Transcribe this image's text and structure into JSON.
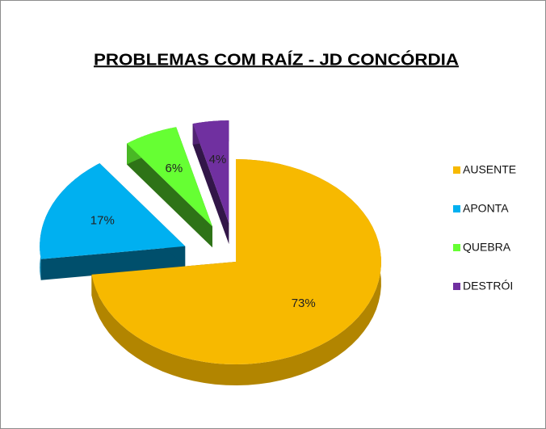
{
  "chart_data": {
    "type": "pie3d",
    "title": "PROBLEMAS COM RAÍZ - JD CONCÓRDIA",
    "categories": [
      "AUSENTE",
      "APONTA",
      "QUEBRA",
      "DESTRÓI"
    ],
    "values": [
      73,
      17,
      6,
      4
    ],
    "value_labels": [
      "73%",
      "17%",
      "6%",
      "4%"
    ],
    "colors": [
      "#f7b900",
      "#00b0f0",
      "#66ff33",
      "#7030a0"
    ],
    "legend": "right"
  }
}
